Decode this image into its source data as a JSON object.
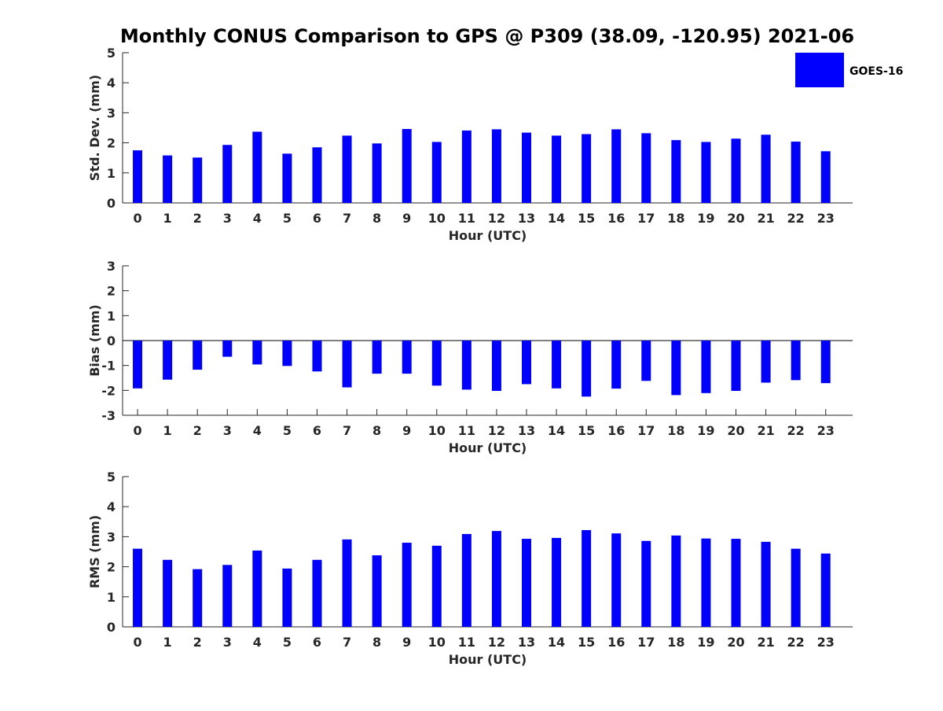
{
  "title": "Monthly CONUS Comparison to GPS @ P309 (38.09, -120.95) 2021-06",
  "legend": {
    "label": "GOES-16",
    "color": "#0000ff",
    "placement": "top-right"
  },
  "chart_data": [
    {
      "type": "bar",
      "xlabel": "Hour (UTC)",
      "ylabel": "Std. Dev. (mm)",
      "ylim": [
        0,
        5
      ],
      "yticks": [
        0,
        1,
        2,
        3,
        4,
        5
      ],
      "categories": [
        "0",
        "1",
        "2",
        "3",
        "4",
        "5",
        "6",
        "7",
        "8",
        "9",
        "10",
        "11",
        "12",
        "13",
        "14",
        "15",
        "16",
        "17",
        "18",
        "19",
        "20",
        "21",
        "22",
        "23"
      ],
      "series": [
        {
          "name": "GOES-16",
          "values": [
            1.75,
            1.58,
            1.51,
            1.93,
            2.37,
            1.64,
            1.85,
            2.24,
            1.98,
            2.46,
            2.03,
            2.41,
            2.45,
            2.34,
            2.24,
            2.29,
            2.45,
            2.32,
            2.09,
            2.03,
            2.14,
            2.27,
            2.04,
            1.72
          ]
        }
      ]
    },
    {
      "type": "bar",
      "xlabel": "Hour (UTC)",
      "ylabel": "Bias (mm)",
      "ylim": [
        -3,
        3
      ],
      "yticks": [
        -3,
        -2,
        -1,
        0,
        1,
        2,
        3
      ],
      "categories": [
        "0",
        "1",
        "2",
        "3",
        "4",
        "5",
        "6",
        "7",
        "8",
        "9",
        "10",
        "11",
        "12",
        "13",
        "14",
        "15",
        "16",
        "17",
        "18",
        "19",
        "20",
        "21",
        "22",
        "23"
      ],
      "series": [
        {
          "name": "GOES-16",
          "values": [
            -1.92,
            -1.57,
            -1.17,
            -0.65,
            -0.96,
            -1.02,
            -1.24,
            -1.88,
            -1.33,
            -1.33,
            -1.81,
            -1.97,
            -2.02,
            -1.75,
            -1.92,
            -2.25,
            -1.93,
            -1.62,
            -2.19,
            -2.11,
            -2.02,
            -1.69,
            -1.59,
            -1.71
          ]
        }
      ]
    },
    {
      "type": "bar",
      "xlabel": "Hour (UTC)",
      "ylabel": "RMS (mm)",
      "ylim": [
        0,
        5
      ],
      "yticks": [
        0,
        1,
        2,
        3,
        4,
        5
      ],
      "categories": [
        "0",
        "1",
        "2",
        "3",
        "4",
        "5",
        "6",
        "7",
        "8",
        "9",
        "10",
        "11",
        "12",
        "13",
        "14",
        "15",
        "16",
        "17",
        "18",
        "19",
        "20",
        "21",
        "22",
        "23"
      ],
      "series": [
        {
          "name": "GOES-16",
          "values": [
            2.6,
            2.23,
            1.92,
            2.06,
            2.54,
            1.94,
            2.23,
            2.91,
            2.38,
            2.8,
            2.7,
            3.09,
            3.19,
            2.93,
            2.96,
            3.22,
            3.11,
            2.86,
            3.04,
            2.94,
            2.93,
            2.83,
            2.6,
            2.44
          ]
        }
      ]
    }
  ]
}
